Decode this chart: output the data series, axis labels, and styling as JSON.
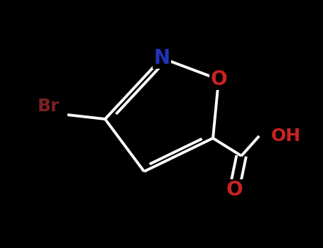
{
  "background_color": "#000000",
  "bond_color": "#ffffff",
  "bond_width": 2.8,
  "atoms": {
    "N": {
      "color": "#2233bb",
      "fontsize": 20,
      "fontweight": "bold"
    },
    "O_ring": {
      "color": "#cc2222",
      "fontsize": 20,
      "fontweight": "bold"
    },
    "Br": {
      "color": "#7a2020",
      "fontsize": 18,
      "fontweight": "bold"
    },
    "OH": {
      "color": "#cc2222",
      "fontsize": 18,
      "fontweight": "bold"
    },
    "O_carbonyl": {
      "color": "#cc2222",
      "fontsize": 20,
      "fontweight": "bold"
    }
  },
  "figsize": [
    4.55,
    3.5
  ],
  "dpi": 100
}
